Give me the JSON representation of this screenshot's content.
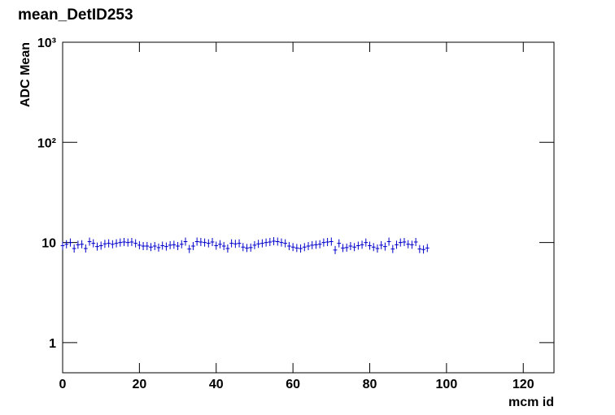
{
  "chart_data": {
    "type": "scatter",
    "title": "mean_DetID253",
    "x_label": "mcm id",
    "y_label": "ADC Mean",
    "log_y": true,
    "xlim": [
      0,
      128
    ],
    "xticks": [
      0,
      20,
      40,
      60,
      80,
      100,
      120
    ],
    "ylim": [
      0.5,
      1000
    ],
    "yticks": [
      1,
      10,
      {
        "value": 100,
        "label": "10²"
      },
      {
        "value": 1000,
        "label": "10³"
      }
    ],
    "series": [
      {
        "color": "#0000cc",
        "x": [
          0,
          1,
          2,
          3,
          4,
          5,
          6,
          7,
          8,
          9,
          10,
          11,
          12,
          13,
          14,
          15,
          16,
          17,
          18,
          19,
          20,
          21,
          22,
          23,
          24,
          25,
          26,
          27,
          28,
          29,
          30,
          31,
          32,
          33,
          34,
          35,
          36,
          37,
          38,
          39,
          40,
          41,
          42,
          43,
          44,
          45,
          46,
          47,
          48,
          49,
          50,
          51,
          52,
          53,
          54,
          55,
          56,
          57,
          58,
          59,
          60,
          61,
          62,
          63,
          64,
          65,
          66,
          67,
          68,
          69,
          70,
          71,
          72,
          73,
          74,
          75,
          76,
          77,
          78,
          79,
          80,
          81,
          82,
          83,
          84,
          85,
          86,
          87,
          88,
          89,
          90,
          91,
          92,
          93,
          94,
          95
        ],
        "values": [
          9.3,
          9.6,
          10,
          8.7,
          9.5,
          9.6,
          8.7,
          10.2,
          9.8,
          9.1,
          9.3,
          9.7,
          9.8,
          9.6,
          9.8,
          10,
          10.1,
          10,
          10.1,
          9.8,
          9.4,
          9.2,
          9.2,
          9.0,
          9.2,
          8.9,
          9.3,
          9.1,
          9.4,
          9.5,
          9.2,
          9.6,
          10.2,
          8.6,
          9.2,
          10.2,
          10.1,
          10.0,
          9.8,
          10.1,
          9.3,
          9.6,
          9.2,
          8.7,
          9.8,
          9.7,
          9.8,
          9.0,
          8.8,
          8.9,
          9.4,
          9.7,
          9.8,
          10.0,
          10.1,
          10.3,
          10.2,
          10.0,
          9.8,
          9.2,
          9.0,
          8.8,
          8.7,
          9.0,
          9.2,
          9.4,
          9.5,
          9.6,
          10.0,
          10.1,
          10.2,
          8.4,
          9.8,
          8.8,
          8.9,
          9.2,
          9.0,
          9.3,
          9.5,
          10.0,
          9.3,
          9.0,
          8.7,
          9.4,
          9.1,
          10.2,
          8.6,
          9.5,
          10.0,
          10.1,
          9.6,
          9.5,
          10.1,
          8.6,
          8.5,
          8.8
        ]
      }
    ]
  }
}
